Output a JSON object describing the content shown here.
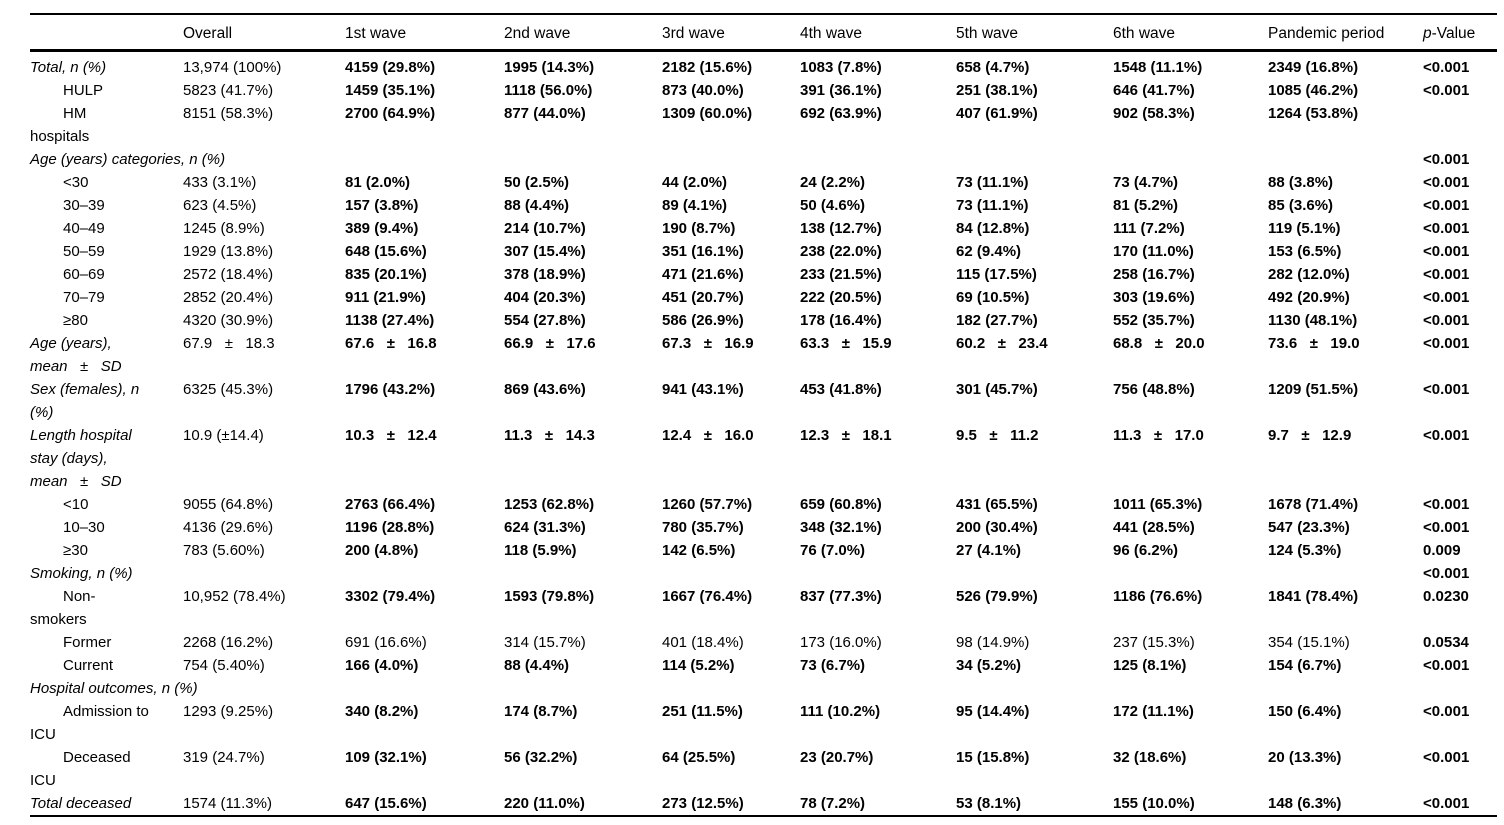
{
  "table": {
    "header": {
      "labels": [
        "Overall",
        "1st wave",
        "2nd wave",
        "3rd wave",
        "4th wave",
        "5th wave",
        "6th wave",
        "Pandemic period"
      ],
      "p_italic": "p",
      "p_rest": "-Value"
    },
    "rows": [
      {
        "label": "Total, n (%)",
        "italic": true,
        "overall": "13,974 (100%)",
        "values": [
          "4159 (29.8%)",
          "1995 (14.3%)",
          "2182 (15.6%)",
          "1083 (7.8%)",
          "658 (4.7%)",
          "1548 (11.1%)",
          "2349 (16.8%)"
        ],
        "p": "<0.001"
      },
      {
        "label": "HULP",
        "indent": true,
        "overall": "5823 (41.7%)",
        "values": [
          "1459 (35.1%)",
          "1118 (56.0%)",
          "873 (40.0%)",
          "391 (36.1%)",
          "251 (38.1%)",
          "646 (41.7%)",
          "1085 (46.2%)"
        ],
        "p": "<0.001"
      },
      {
        "label": "HM\nhospitals",
        "indent": true,
        "overall": "8151 (58.3%)",
        "values": [
          "2700 (64.9%)",
          "877 (44.0%)",
          "1309 (60.0%)",
          "692 (63.9%)",
          "407 (61.9%)",
          "902 (58.3%)",
          "1264 (53.8%)"
        ],
        "p": ""
      },
      {
        "label": "Age (years) categories, n (%)",
        "italic": true,
        "span": true,
        "p": "<0.001"
      },
      {
        "label": "<30",
        "indent": true,
        "overall": "433 (3.1%)",
        "values": [
          "81 (2.0%)",
          "50 (2.5%)",
          "44 (2.0%)",
          "24 (2.2%)",
          "73 (11.1%)",
          "73 (4.7%)",
          "88 (3.8%)"
        ],
        "p": "<0.001"
      },
      {
        "label": "30–39",
        "indent": true,
        "overall": "623 (4.5%)",
        "values": [
          "157 (3.8%)",
          "88 (4.4%)",
          "89 (4.1%)",
          "50 (4.6%)",
          "73 (11.1%)",
          "81 (5.2%)",
          "85 (3.6%)"
        ],
        "p": "<0.001"
      },
      {
        "label": "40–49",
        "indent": true,
        "overall": "1245 (8.9%)",
        "values": [
          "389 (9.4%)",
          "214 (10.7%)",
          "190 (8.7%)",
          "138 (12.7%)",
          "84 (12.8%)",
          "111 (7.2%)",
          "119 (5.1%)"
        ],
        "p": "<0.001"
      },
      {
        "label": "50–59",
        "indent": true,
        "overall": "1929 (13.8%)",
        "values": [
          "648 (15.6%)",
          "307 (15.4%)",
          "351 (16.1%)",
          "238 (22.0%)",
          "62 (9.4%)",
          "170 (11.0%)",
          "153 (6.5%)"
        ],
        "p": "<0.001"
      },
      {
        "label": "60–69",
        "indent": true,
        "overall": "2572 (18.4%)",
        "values": [
          "835 (20.1%)",
          "378 (18.9%)",
          "471 (21.6%)",
          "233 (21.5%)",
          "115 (17.5%)",
          "258 (16.7%)",
          "282 (12.0%)"
        ],
        "p": "<0.001"
      },
      {
        "label": "70–79",
        "indent": true,
        "overall": "2852 (20.4%)",
        "values": [
          "911 (21.9%)",
          "404 (20.3%)",
          "451 (20.7%)",
          "222 (20.5%)",
          "69 (10.5%)",
          "303 (19.6%)",
          "492 (20.9%)"
        ],
        "p": "<0.001"
      },
      {
        "label": "≥80",
        "indent": true,
        "overall": "4320 (30.9%)",
        "values": [
          "1138 (27.4%)",
          "554 (27.8%)",
          "586 (26.9%)",
          "178 (16.4%)",
          "182 (27.7%)",
          "552 (35.7%)",
          "1130 (48.1%)"
        ],
        "p": "<0.001"
      },
      {
        "label": "Age (years),\nmean   ±   SD",
        "italic": true,
        "overall": "67.9   ±   18.3",
        "values": [
          "67.6   ±   16.8",
          "66.9   ±   17.6",
          "67.3   ±   16.9",
          "63.3   ±   15.9",
          "60.2   ±   23.4",
          "68.8   ±   20.0",
          "73.6   ±   19.0"
        ],
        "p": "<0.001"
      },
      {
        "label": "Sex (females), n\n(%)",
        "italic": true,
        "overall": "6325 (45.3%)",
        "values": [
          "1796 (43.2%)",
          "869 (43.6%)",
          "941 (43.1%)",
          "453 (41.8%)",
          "301 (45.7%)",
          "756 (48.8%)",
          "1209 (51.5%)"
        ],
        "p": "<0.001"
      },
      {
        "label": "Length hospital\nstay (days),\nmean   ±   SD",
        "italic": true,
        "overall": "10.9 (±14.4)",
        "values": [
          "10.3   ±   12.4",
          "11.3   ±   14.3",
          "12.4   ±   16.0",
          "12.3   ±   18.1",
          "9.5   ±   11.2",
          "11.3   ±   17.0",
          "9.7   ±   12.9"
        ],
        "p": "<0.001"
      },
      {
        "label": "<10",
        "indent": true,
        "overall": "9055 (64.8%)",
        "values": [
          "2763 (66.4%)",
          "1253 (62.8%)",
          "1260 (57.7%)",
          "659 (60.8%)",
          "431 (65.5%)",
          "1011 (65.3%)",
          "1678 (71.4%)"
        ],
        "p": "<0.001"
      },
      {
        "label": "10–30",
        "indent": true,
        "overall": "4136 (29.6%)",
        "values": [
          "1196 (28.8%)",
          "624 (31.3%)",
          "780 (35.7%)",
          "348 (32.1%)",
          "200 (30.4%)",
          "441 (28.5%)",
          "547 (23.3%)"
        ],
        "p": "<0.001"
      },
      {
        "label": "≥30",
        "indent": true,
        "overall": "783 (5.60%)",
        "values": [
          "200 (4.8%)",
          "118 (5.9%)",
          "142 (6.5%)",
          "76 (7.0%)",
          "27 (4.1%)",
          "96 (6.2%)",
          "124 (5.3%)"
        ],
        "p": "0.009"
      },
      {
        "label": "Smoking, n (%)",
        "italic": true,
        "span": true,
        "p": "<0.001"
      },
      {
        "label": "Non-\nsmokers",
        "indent": true,
        "overall": "10,952 (78.4%)",
        "values": [
          "3302 (79.4%)",
          "1593 (79.8%)",
          "1667 (76.4%)",
          "837 (77.3%)",
          "526 (79.9%)",
          "1186 (76.6%)",
          "1841 (78.4%)"
        ],
        "p": "0.0230"
      },
      {
        "label": "Former",
        "indent": true,
        "bold": false,
        "overall": "2268 (16.2%)",
        "values": [
          "691 (16.6%)",
          "314 (15.7%)",
          "401 (18.4%)",
          "173 (16.0%)",
          "98 (14.9%)",
          "237 (15.3%)",
          "354 (15.1%)"
        ],
        "p": "0.0534"
      },
      {
        "label": "Current",
        "indent": true,
        "overall": "754 (5.40%)",
        "values": [
          "166 (4.0%)",
          "88 (4.4%)",
          "114 (5.2%)",
          "73 (6.7%)",
          "34 (5.2%)",
          "125 (8.1%)",
          "154 (6.7%)"
        ],
        "p": "<0.001"
      },
      {
        "label": "Hospital outcomes, n (%)",
        "italic": true,
        "span": true,
        "p": ""
      },
      {
        "label": "Admission to\nICU",
        "indent": true,
        "overall": "1293 (9.25%)",
        "values": [
          "340 (8.2%)",
          "174 (8.7%)",
          "251 (11.5%)",
          "111 (10.2%)",
          "95 (14.4%)",
          "172 (11.1%)",
          "150 (6.4%)"
        ],
        "p": "<0.001"
      },
      {
        "label": "Deceased\nICU",
        "indent": true,
        "overall": "319 (24.7%)",
        "values": [
          "109 (32.1%)",
          "56 (32.2%)",
          "64 (25.5%)",
          "23 (20.7%)",
          "15 (15.8%)",
          "32 (18.6%)",
          "20 (13.3%)"
        ],
        "p": "<0.001"
      },
      {
        "label": "Total deceased",
        "italic": true,
        "overall": "1574 (11.3%)",
        "values": [
          "647 (15.6%)",
          "220 (11.0%)",
          "273 (12.5%)",
          "78 (7.2%)",
          "53 (8.1%)",
          "155 (10.0%)",
          "148 (6.3%)"
        ],
        "p": "<0.001"
      }
    ]
  }
}
